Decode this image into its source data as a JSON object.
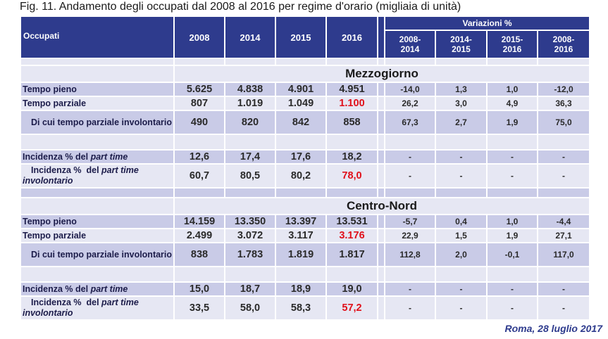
{
  "title": "Fig. 11. Andamento degli occupati dal 2008 al 2016 per regime d'orario (migliaia di unità)",
  "header": {
    "label": "Occupati",
    "years": [
      "2008",
      "2014",
      "2015",
      "2016"
    ],
    "group": "Variazioni %",
    "periods": [
      [
        "2008-",
        "2014"
      ],
      [
        "2014-",
        "2015"
      ],
      [
        "2015-",
        "2016"
      ],
      [
        "2008-",
        "2016"
      ]
    ]
  },
  "sections": [
    {
      "name": "Mezzogiorno",
      "rows": [
        {
          "label": [
            {
              "text": "Tempo pieno"
            }
          ],
          "values": [
            "5.625",
            "4.838",
            "4.901",
            "4.951",
            "-14,0",
            "1,3",
            "1,0",
            "-12,0"
          ]
        },
        {
          "label": [
            {
              "text": "Tempo parziale"
            }
          ],
          "values": [
            "807",
            "1.019",
            "1.049",
            "1.100",
            "26,2",
            "3,0",
            "4,9",
            "36,3"
          ],
          "red": 3
        },
        {
          "label": [
            {
              "text": "Di cui tempo parziale involontario"
            }
          ],
          "indent": true,
          "values": [
            "490",
            "820",
            "842",
            "858",
            "67,3",
            "2,7",
            "1,9",
            "75,0"
          ]
        },
        {
          "label": [
            {
              "text": "Incidenza % del "
            },
            {
              "text": "part time",
              "italic": true
            }
          ],
          "gap_before": true,
          "values": [
            "12,6",
            "17,4",
            "17,6",
            "18,2",
            "-",
            "-",
            "-",
            "-"
          ]
        },
        {
          "label": [
            {
              "text": "Incidenza %  del "
            },
            {
              "text": "part time",
              "italic": true
            },
            {
              "text": "involontario",
              "italic": true,
              "break": true
            }
          ],
          "indent": true,
          "values": [
            "60,7",
            "80,5",
            "80,2",
            "78,0",
            "-",
            "-",
            "-",
            "-"
          ],
          "red": 3
        }
      ]
    },
    {
      "name": "Centro-Nord",
      "rows": [
        {
          "label": [
            {
              "text": "Tempo pieno"
            }
          ],
          "values": [
            "14.159",
            "13.350",
            "13.397",
            "13.531",
            "-5,7",
            "0,4",
            "1,0",
            "-4,4"
          ]
        },
        {
          "label": [
            {
              "text": "Tempo parziale"
            }
          ],
          "values": [
            "2.499",
            "3.072",
            "3.117",
            "3.176",
            "22,9",
            "1,5",
            "1,9",
            "27,1"
          ],
          "red": 3
        },
        {
          "label": [
            {
              "text": "Di cui tempo parziale involontario"
            }
          ],
          "indent": true,
          "values": [
            "838",
            "1.783",
            "1.819",
            "1.817",
            "112,8",
            "2,0",
            "-0,1",
            "117,0"
          ]
        },
        {
          "label": [
            {
              "text": "Incidenza % del "
            },
            {
              "text": "part time",
              "italic": true
            }
          ],
          "gap_before": true,
          "values": [
            "15,0",
            "18,7",
            "18,9",
            "19,0",
            "-",
            "-",
            "-",
            "-"
          ]
        },
        {
          "label": [
            {
              "text": "Incidenza %  del "
            },
            {
              "text": "part time",
              "italic": true
            },
            {
              "text": "involontario",
              "italic": true,
              "break": true
            }
          ],
          "indent": true,
          "values": [
            "33,5",
            "58,0",
            "58,3",
            "57,2",
            "-",
            "-",
            "-",
            "-"
          ],
          "red": 3
        }
      ]
    }
  ],
  "footer": "Roma, 28 luglio 2017"
}
